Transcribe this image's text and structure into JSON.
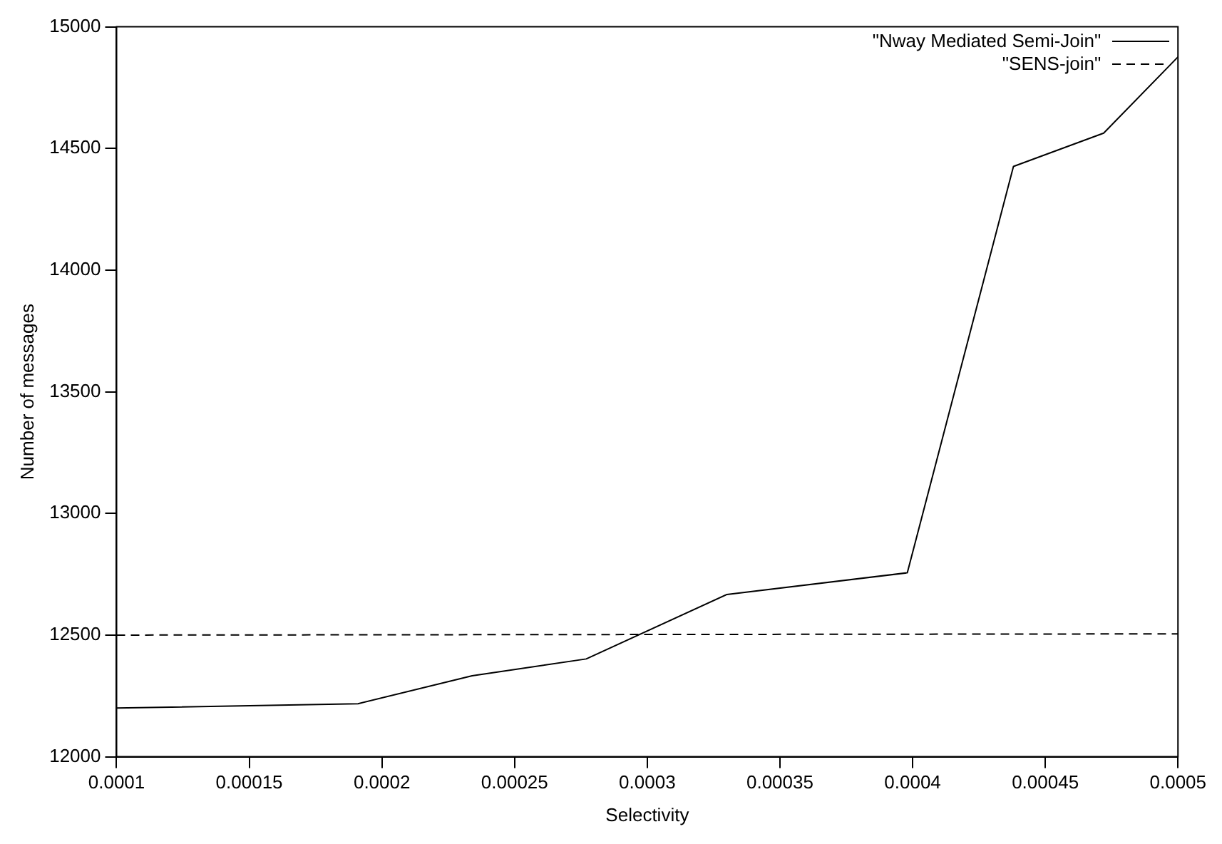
{
  "chart_data": {
    "type": "line",
    "xlabel": "Selectivity",
    "ylabel": "Number of messages",
    "series": [
      {
        "name": "\"Nway Mediated Semi-Join\"",
        "color": "#000000",
        "line_style": "solid",
        "x": [
          0.0001,
          0.000191,
          0.000234,
          0.000277,
          0.00033,
          0.000398,
          0.000438,
          0.000472,
          0.0005
        ],
        "values": [
          12200,
          12218,
          12333,
          12402,
          12667,
          12756,
          14426,
          14563,
          14876
        ]
      },
      {
        "name": "\"SENS-join\"",
        "color": "#000000",
        "line_style": "dashed",
        "x": [
          0.0001,
          0.0005
        ],
        "values": [
          12500,
          12505
        ]
      }
    ],
    "xlim": [
      0.0001,
      0.0005
    ],
    "xticks": [
      0.0001,
      0.00015,
      0.0002,
      0.00025,
      0.0003,
      0.00035,
      0.0004,
      0.00045,
      0.0005
    ],
    "ylim": [
      12000,
      15000
    ],
    "yticks": [
      12000,
      12500,
      13000,
      13500,
      14000,
      14500,
      15000
    ],
    "grid": false,
    "legend": "top right",
    "marker": "none"
  }
}
